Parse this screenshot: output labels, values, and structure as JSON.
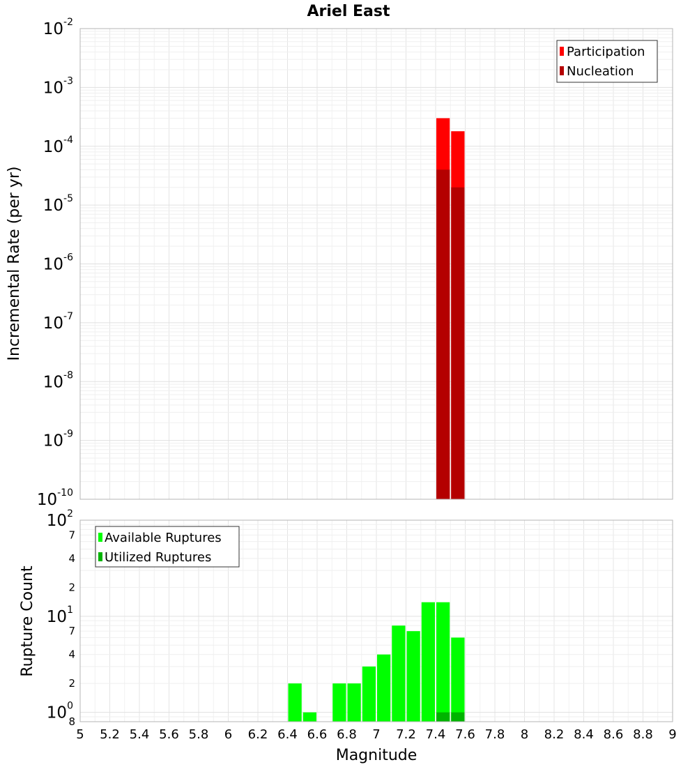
{
  "title": "Ariel East",
  "colors": {
    "participation": "#ff0000",
    "nucleation": "#b40000",
    "available": "#00ff00",
    "utilized": "#00b400",
    "grid": "#e8e8e8",
    "frame": "#b4b4b4"
  },
  "chart_data": [
    {
      "type": "bar",
      "title": "Ariel East",
      "xlabel": "Magnitude",
      "ylabel": "Incremental Rate (per yr)",
      "yscale": "log",
      "xlim": [
        5,
        9
      ],
      "ylim": [
        1e-10,
        0.01
      ],
      "major_ticks": [
        {
          "base": "10",
          "exp": "-2",
          "value": 0.01
        },
        {
          "base": "10",
          "exp": "-3",
          "value": 0.001
        },
        {
          "base": "10",
          "exp": "-4",
          "value": 0.0001
        },
        {
          "base": "10",
          "exp": "-5",
          "value": 1e-05
        },
        {
          "base": "10",
          "exp": "-6",
          "value": 1e-06
        },
        {
          "base": "10",
          "exp": "-7",
          "value": 1e-07
        },
        {
          "base": "10",
          "exp": "-8",
          "value": 1e-08
        },
        {
          "base": "10",
          "exp": "-9",
          "value": 1e-09
        },
        {
          "base": "10",
          "exp": "-10",
          "value": 1e-10
        }
      ],
      "bin_width": 0.1,
      "series": [
        {
          "name": "Participation",
          "x": [
            7.45,
            7.55
          ],
          "values": [
            0.0003,
            0.00018
          ]
        },
        {
          "name": "Nucleation",
          "x": [
            7.45,
            7.55
          ],
          "values": [
            4e-05,
            2e-05
          ]
        }
      ],
      "legend": "top-right"
    },
    {
      "type": "bar",
      "xlabel": "Magnitude",
      "ylabel": "Rupture Count",
      "yscale": "log",
      "xlim": [
        5,
        9
      ],
      "ylim": [
        0.8,
        100
      ],
      "major_ticks": [
        {
          "base": "10",
          "exp": "2",
          "value": 100
        },
        {
          "base": "10",
          "exp": "1",
          "value": 10
        },
        {
          "base": "10",
          "exp": "0",
          "value": 1
        }
      ],
      "minor_ticks": [
        {
          "label": "7",
          "value": 70
        },
        {
          "label": "4",
          "value": 40
        },
        {
          "label": "2",
          "value": 20
        },
        {
          "label": "7",
          "value": 7
        },
        {
          "label": "4",
          "value": 4
        },
        {
          "label": "2",
          "value": 2
        },
        {
          "label": "8",
          "value": 0.8
        }
      ],
      "bin_width": 0.1,
      "series": [
        {
          "name": "Available Ruptures",
          "x": [
            6.45,
            6.55,
            6.75,
            6.85,
            6.95,
            7.05,
            7.15,
            7.25,
            7.35,
            7.45,
            7.55
          ],
          "values": [
            2,
            1,
            2,
            2,
            3,
            4,
            8,
            7,
            14,
            14,
            6
          ]
        },
        {
          "name": "Utilized Ruptures",
          "x": [
            7.45,
            7.55
          ],
          "values": [
            1,
            1
          ]
        }
      ],
      "legend": "top-left"
    }
  ],
  "x_ticks": [
    "5",
    "5.2",
    "5.4",
    "5.6",
    "5.8",
    "6",
    "6.2",
    "6.4",
    "6.6",
    "6.8",
    "7",
    "7.2",
    "7.4",
    "7.6",
    "7.8",
    "8",
    "8.2",
    "8.4",
    "8.6",
    "8.8",
    "9"
  ]
}
